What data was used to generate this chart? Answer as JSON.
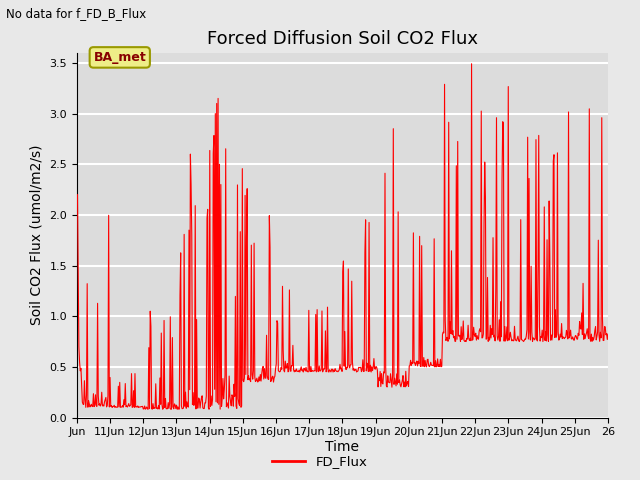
{
  "title": "Forced Diffusion Soil CO2 Flux",
  "xlabel": "Time",
  "ylabel": "Soil CO2 Flux (umol/m2/s)",
  "no_data_label": "No data for f_FD_B_Flux",
  "legend_label": "FD_Flux",
  "ba_label": "BA_met",
  "ylim": [
    0,
    3.6
  ],
  "yticks": [
    0.0,
    0.5,
    1.0,
    1.5,
    2.0,
    2.5,
    3.0,
    3.5
  ],
  "x_tick_labels": [
    "Jun",
    "11Jun",
    "12Jun",
    "13Jun",
    "14Jun",
    "15Jun",
    "16Jun",
    "17Jun",
    "18Jun",
    "19Jun",
    "20Jun",
    "21Jun",
    "22Jun",
    "23Jun",
    "24Jun",
    "25Jun",
    "26"
  ],
  "line_color": "red",
  "line_width": 0.8,
  "bg_color": "#e8e8e8",
  "plot_bg_color": "#dcdcdc",
  "grid_color": "white",
  "ba_box_facecolor": "#eeee88",
  "ba_box_edgecolor": "#999900",
  "ba_text_color": "#880000",
  "title_fontsize": 13,
  "label_fontsize": 10,
  "tick_fontsize": 8,
  "seed": 12345
}
